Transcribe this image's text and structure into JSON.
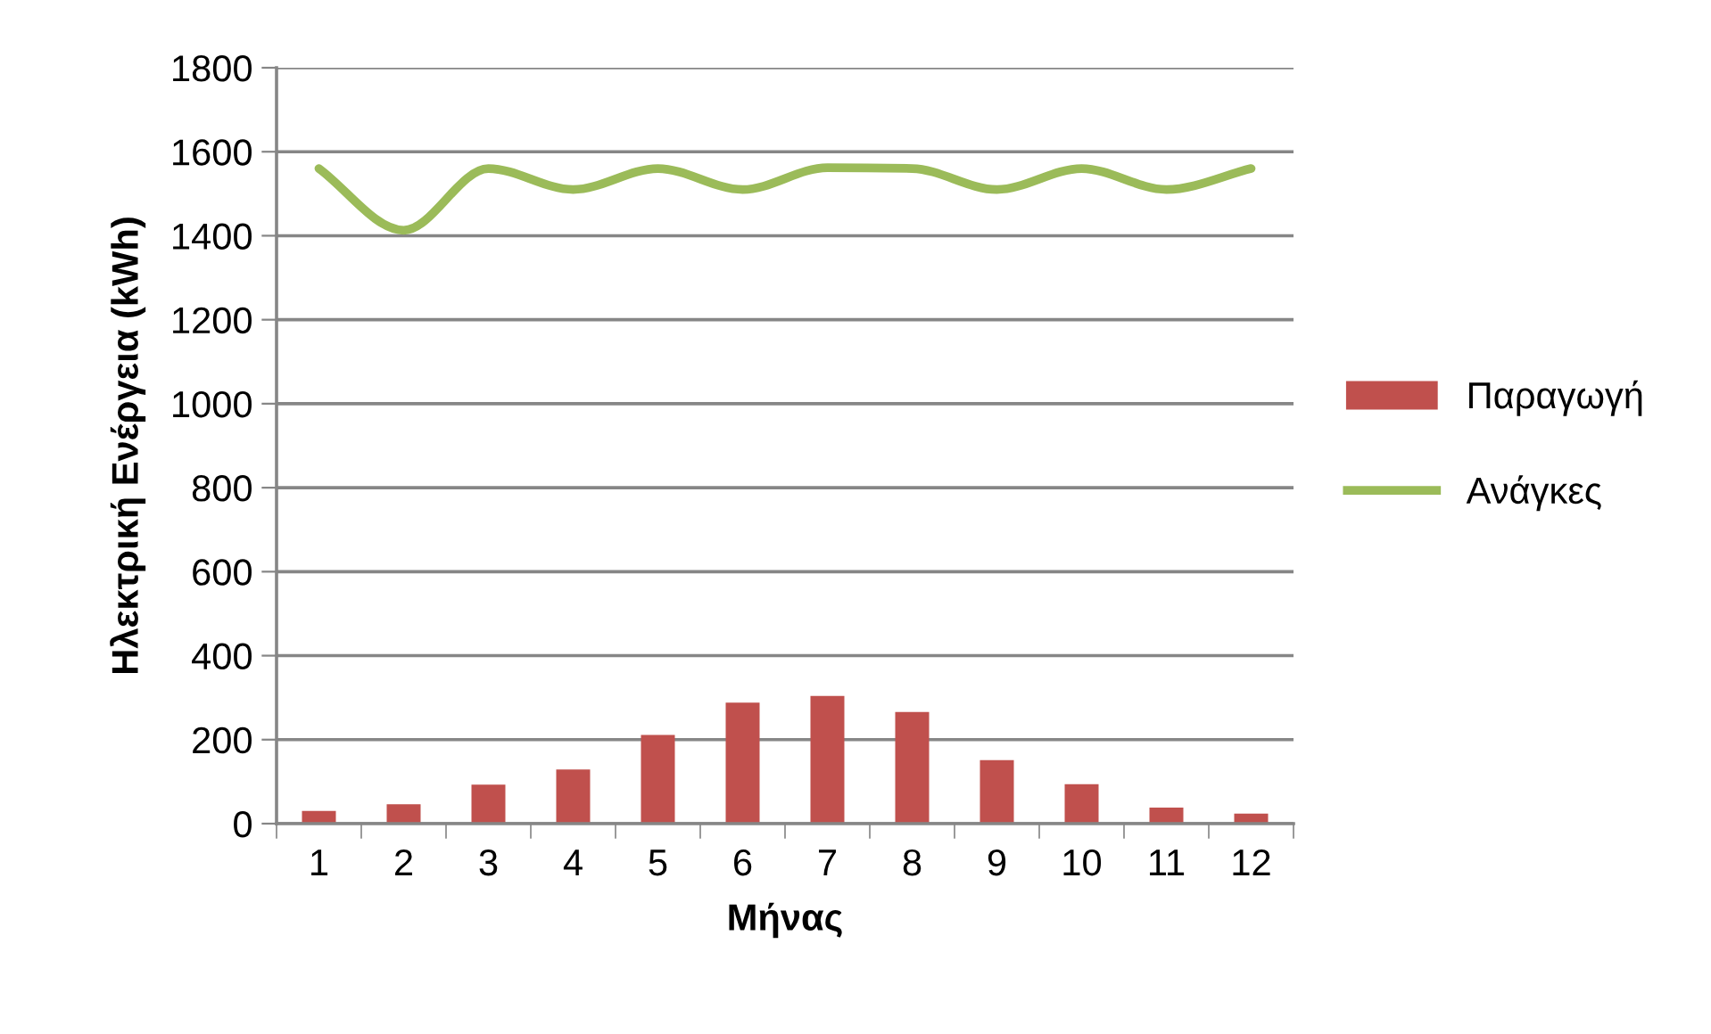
{
  "chart_data": {
    "type": "bar",
    "xlabel": "Μήνας",
    "ylabel": "Ηλεκτρική Ενέργεια (kWh)",
    "categories": [
      "1",
      "2",
      "3",
      "4",
      "5",
      "6",
      "7",
      "8",
      "9",
      "10",
      "11",
      "12"
    ],
    "series": [
      {
        "name": "Παραγωγή",
        "type": "bar",
        "color": "#c0504d",
        "values": [
          30,
          46,
          93,
          129,
          211,
          288,
          304,
          266,
          151,
          94,
          38,
          24
        ]
      },
      {
        "name": "Ανάγκες",
        "type": "line",
        "color": "#9bbb59",
        "values": [
          1560,
          1413,
          1560,
          1510,
          1560,
          1510,
          1562,
          1560,
          1510,
          1560,
          1510,
          1560
        ]
      }
    ],
    "ylim": [
      0,
      1800
    ],
    "yticks": [
      0,
      200,
      400,
      600,
      800,
      1000,
      1200,
      1400,
      1600,
      1800
    ],
    "grid": "y",
    "legend": "right"
  }
}
